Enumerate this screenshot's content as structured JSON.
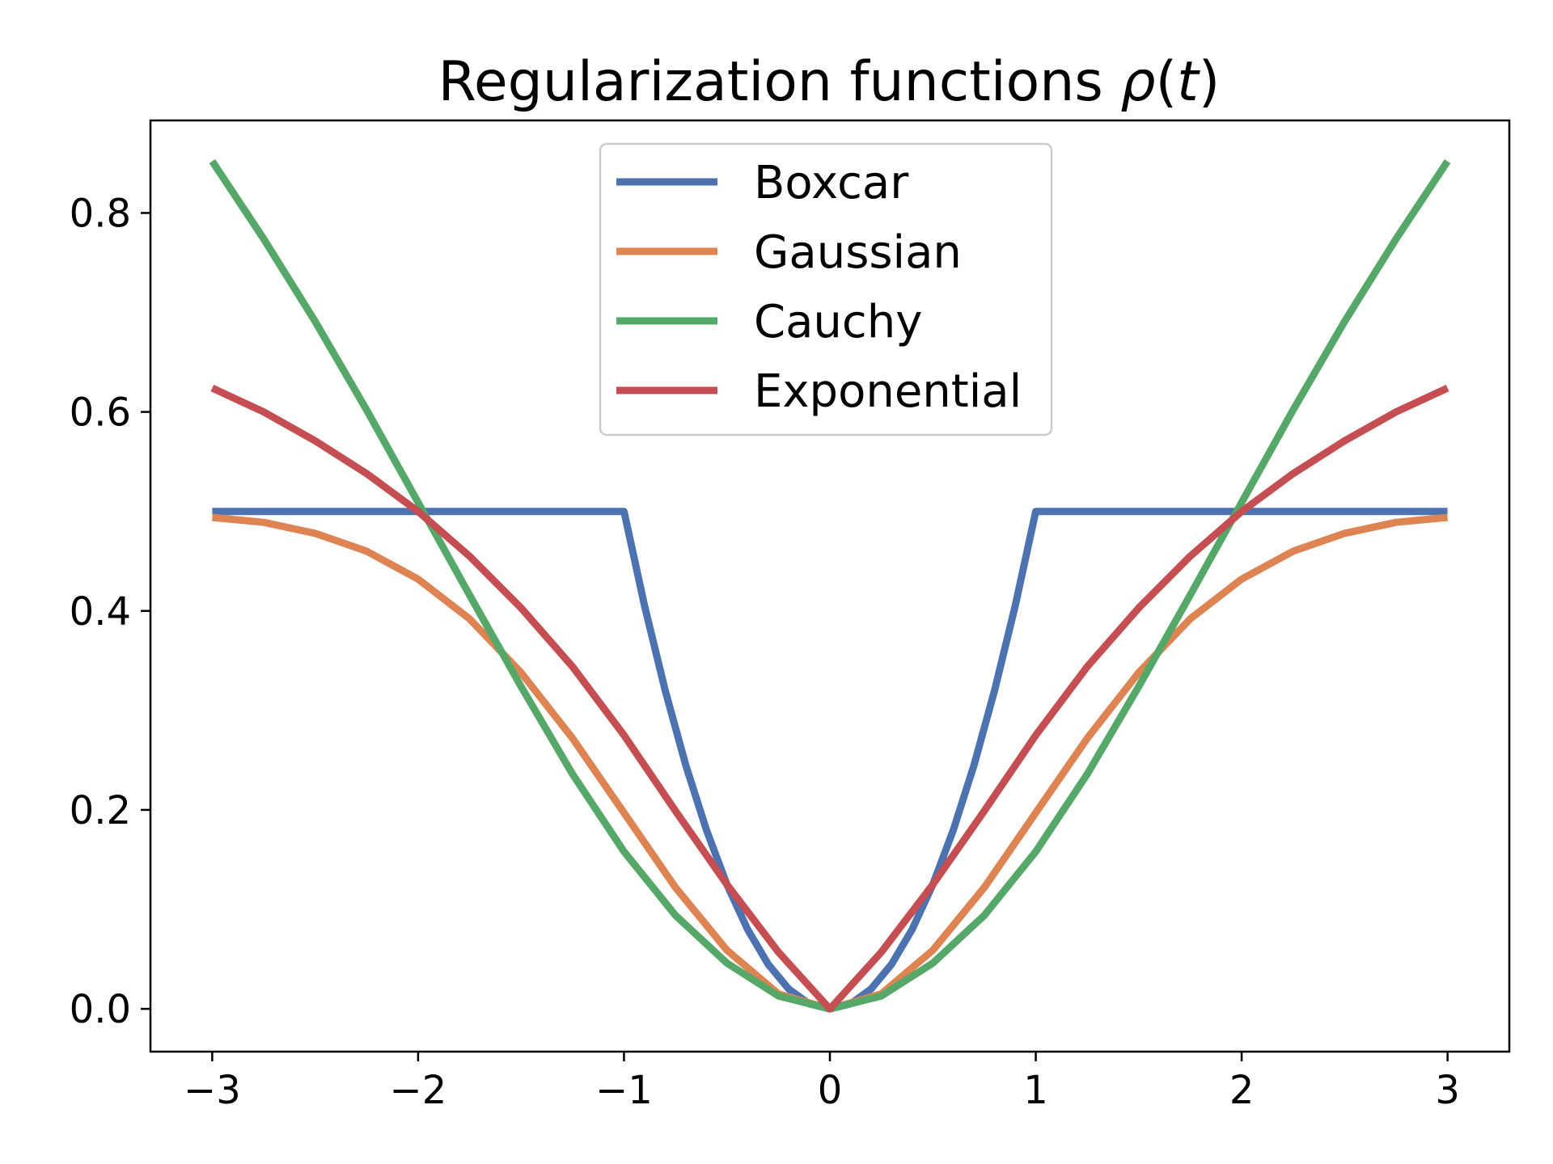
{
  "chart_data": {
    "type": "line",
    "title": "Regularization functions ρ(t)",
    "title_main": "Regularization functions ",
    "title_math": "ρ",
    "title_open": "(",
    "title_var": "t",
    "title_close": ")",
    "xlabel": "",
    "ylabel": "",
    "xlim": [
      -3.3,
      3.3
    ],
    "ylim": [
      -0.043,
      0.893
    ],
    "xticks": [
      -3,
      -2,
      -1,
      0,
      1,
      2,
      3
    ],
    "xtick_labels": [
      "−3",
      "−2",
      "−1",
      "0",
      "1",
      "2",
      "3"
    ],
    "yticks": [
      0.0,
      0.2,
      0.4,
      0.6,
      0.8
    ],
    "ytick_labels": [
      "0.0",
      "0.2",
      "0.4",
      "0.6",
      "0.8"
    ],
    "grid": false,
    "legend_position": "upper-center",
    "series": [
      {
        "name": "Boxcar",
        "color": "#4c72b0",
        "x": [
          -3.0,
          -1.0,
          -0.9,
          -0.8,
          -0.7,
          -0.6,
          -0.5,
          -0.4,
          -0.3,
          -0.2,
          -0.1,
          0.0,
          0.1,
          0.2,
          0.3,
          0.4,
          0.5,
          0.6,
          0.7,
          0.8,
          0.9,
          1.0,
          3.0
        ],
        "y": [
          0.5,
          0.5,
          0.405,
          0.32,
          0.245,
          0.18,
          0.125,
          0.08,
          0.045,
          0.02,
          0.005,
          0.0,
          0.005,
          0.02,
          0.045,
          0.08,
          0.125,
          0.18,
          0.245,
          0.32,
          0.405,
          0.5,
          0.5
        ]
      },
      {
        "name": "Gaussian",
        "color": "#dd8452",
        "x": [
          -3.0,
          -2.75,
          -2.5,
          -2.25,
          -2.0,
          -1.75,
          -1.5,
          -1.25,
          -1.0,
          -0.75,
          -0.5,
          -0.25,
          0.0,
          0.25,
          0.5,
          0.75,
          1.0,
          1.25,
          1.5,
          1.75,
          2.0,
          2.25,
          2.5,
          2.75,
          3.0
        ],
        "y": [
          0.494,
          0.489,
          0.478,
          0.46,
          0.432,
          0.392,
          0.338,
          0.272,
          0.197,
          0.122,
          0.059,
          0.015,
          0.0,
          0.015,
          0.059,
          0.122,
          0.197,
          0.272,
          0.338,
          0.392,
          0.432,
          0.46,
          0.478,
          0.489,
          0.494
        ]
      },
      {
        "name": "Cauchy",
        "color": "#55a868",
        "x": [
          -3.0,
          -2.75,
          -2.5,
          -2.25,
          -2.0,
          -1.75,
          -1.5,
          -1.25,
          -1.0,
          -0.75,
          -0.5,
          -0.25,
          0.0,
          0.25,
          0.5,
          0.75,
          1.0,
          1.25,
          1.5,
          1.75,
          2.0,
          2.25,
          2.5,
          2.75,
          3.0
        ],
        "y": [
          0.852,
          0.774,
          0.691,
          0.602,
          0.509,
          0.416,
          0.324,
          0.236,
          0.158,
          0.094,
          0.046,
          0.013,
          0.0,
          0.013,
          0.046,
          0.094,
          0.158,
          0.236,
          0.324,
          0.416,
          0.509,
          0.602,
          0.691,
          0.774,
          0.852
        ]
      },
      {
        "name": "Exponential",
        "color": "#c44e52",
        "x": [
          -3.0,
          -2.75,
          -2.5,
          -2.25,
          -2.0,
          -1.75,
          -1.5,
          -1.25,
          -1.0,
          -0.75,
          -0.5,
          -0.25,
          0.0,
          0.25,
          0.5,
          0.75,
          1.0,
          1.25,
          1.5,
          1.75,
          2.0,
          2.25,
          2.5,
          2.75,
          3.0
        ],
        "y": [
          0.624,
          0.6,
          0.571,
          0.538,
          0.5,
          0.455,
          0.403,
          0.344,
          0.275,
          0.199,
          0.125,
          0.057,
          0.0,
          0.057,
          0.125,
          0.199,
          0.275,
          0.344,
          0.403,
          0.455,
          0.5,
          0.538,
          0.571,
          0.6,
          0.624
        ]
      }
    ]
  }
}
